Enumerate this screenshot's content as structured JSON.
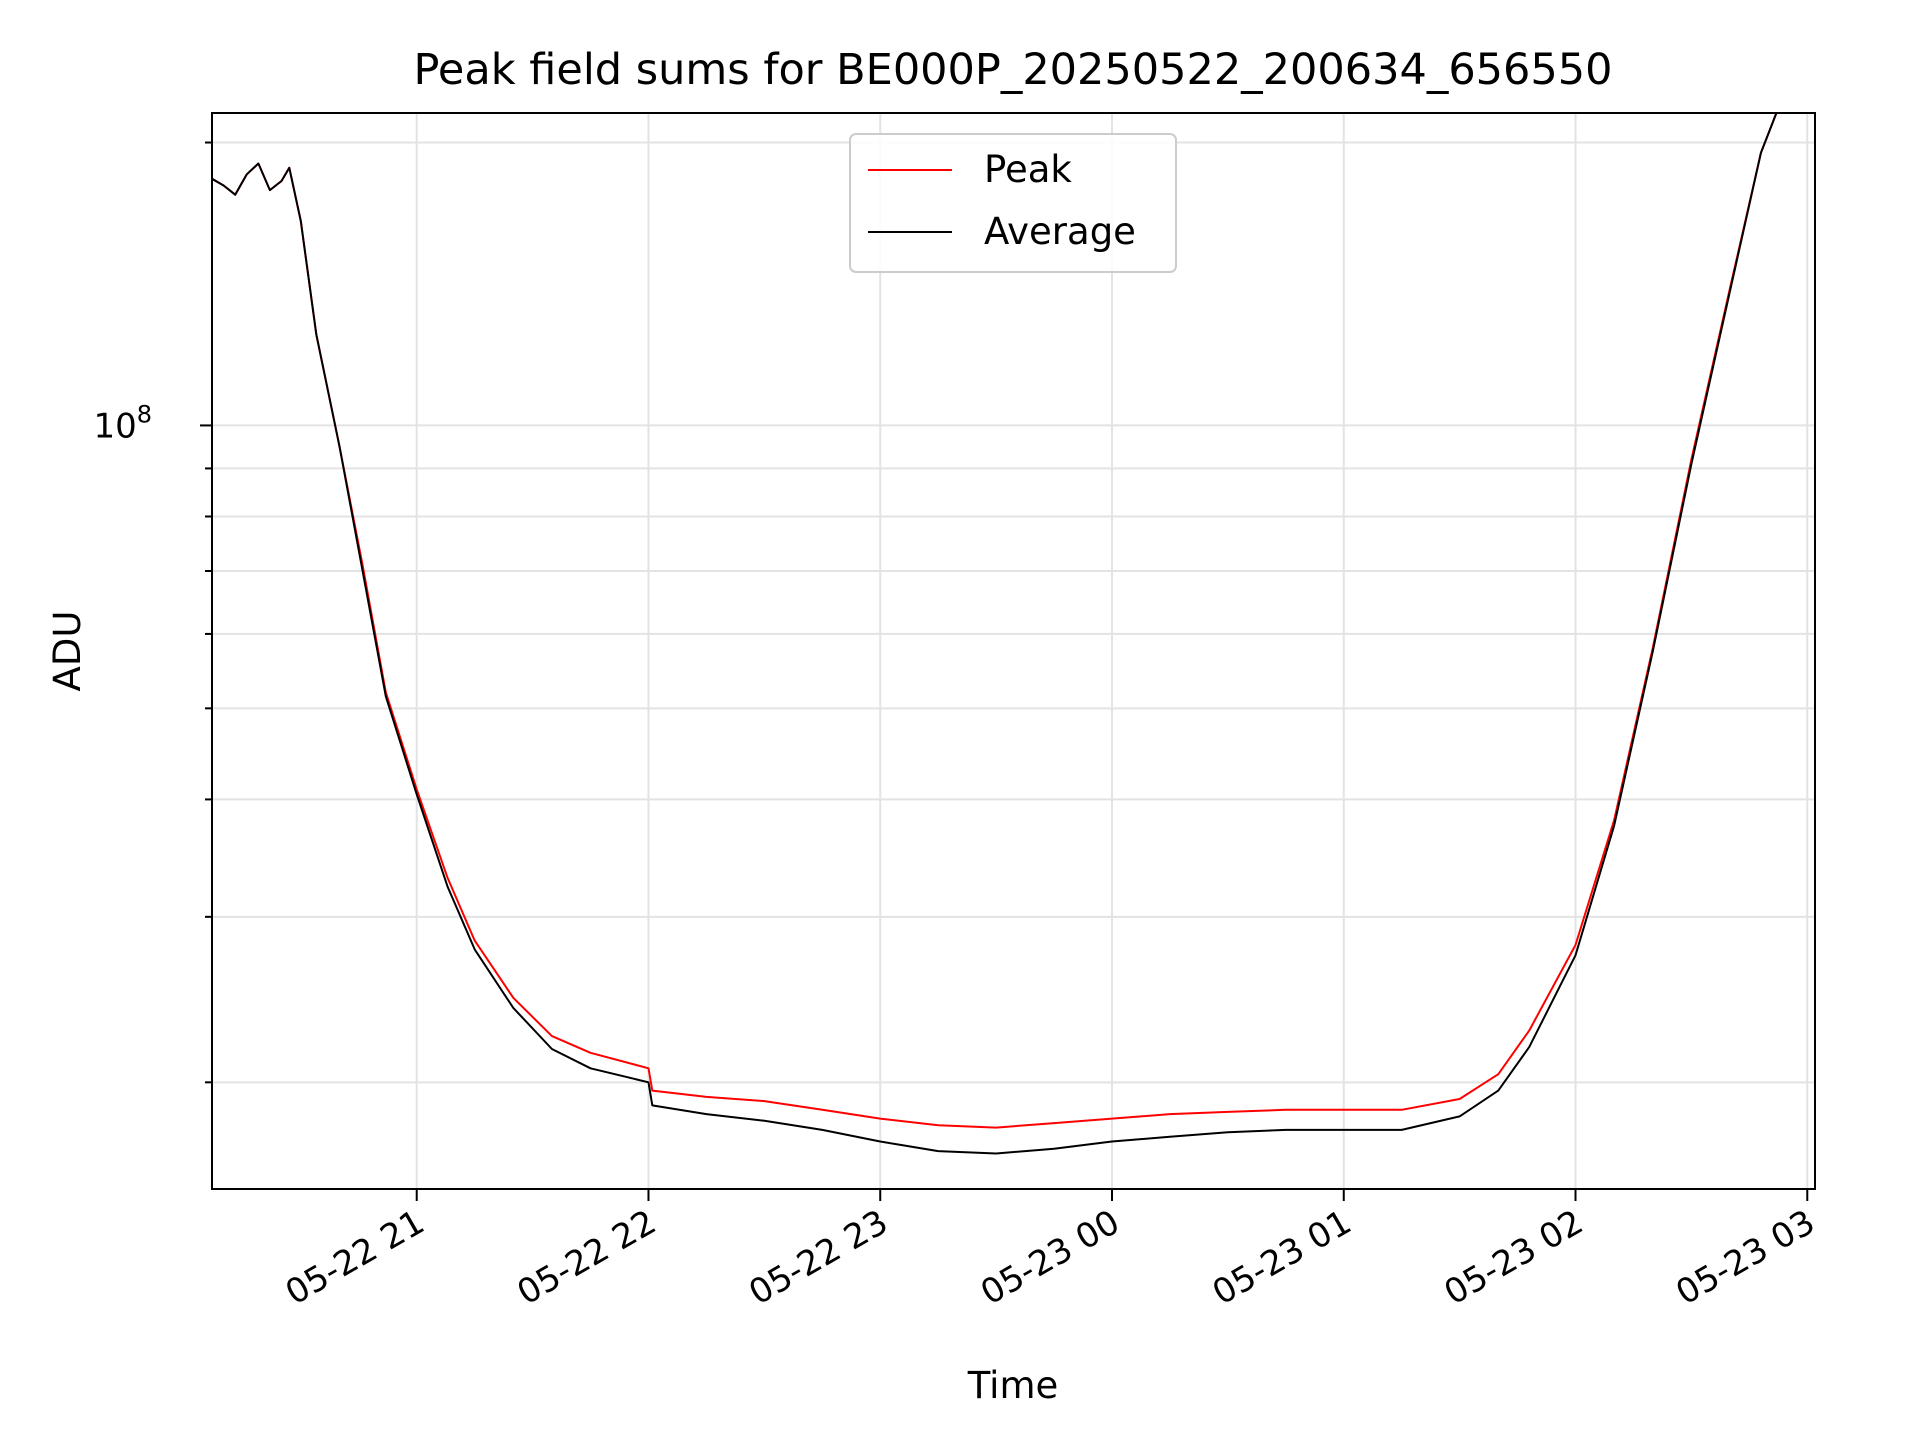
{
  "chart_data": {
    "type": "line",
    "title": "Peak field sums for BE000P_20250522_200634_656550",
    "xlabel": "Time",
    "ylabel": "ADU",
    "y_scale": "log",
    "grid": true,
    "grid_which": "both",
    "legend_position": "top-center",
    "x_range": [
      "2025-05-22 20:07",
      "2025-05-23 03:02"
    ],
    "ylim": [
      15400000,
      215000000
    ],
    "x_ticks": [
      {
        "time": "2025-05-22 21:00",
        "label": "05-22 21"
      },
      {
        "time": "2025-05-22 22:00",
        "label": "05-22 22"
      },
      {
        "time": "2025-05-22 23:00",
        "label": "05-22 23"
      },
      {
        "time": "2025-05-23 00:00",
        "label": "05-23 00"
      },
      {
        "time": "2025-05-23 01:00",
        "label": "05-23 01"
      },
      {
        "time": "2025-05-23 02:00",
        "label": "05-23 02"
      },
      {
        "time": "2025-05-23 03:00",
        "label": "05-23 03"
      }
    ],
    "y_major_ticks": [
      {
        "value": 100000000,
        "base": "10",
        "exponent": "8"
      }
    ],
    "y_minor_gridlines": [
      20000000,
      30000000,
      40000000,
      50000000,
      60000000,
      70000000,
      80000000,
      90000000,
      200000000
    ],
    "series": [
      {
        "name": "Peak",
        "color": "#ff0000",
        "points": [
          [
            "2025-05-22 20:07",
            183000000
          ],
          [
            "2025-05-22 20:10",
            180000000
          ],
          [
            "2025-05-22 20:13",
            176000000
          ],
          [
            "2025-05-22 20:16",
            185000000
          ],
          [
            "2025-05-22 20:19",
            190000000
          ],
          [
            "2025-05-22 20:22",
            178000000
          ],
          [
            "2025-05-22 20:25",
            182000000
          ],
          [
            "2025-05-22 20:27",
            188000000
          ],
          [
            "2025-05-22 20:30",
            165000000
          ],
          [
            "2025-05-22 20:34",
            125000000
          ],
          [
            "2025-05-22 20:40",
            95000000
          ],
          [
            "2025-05-22 20:46",
            71000000
          ],
          [
            "2025-05-22 20:52",
            52000000
          ],
          [
            "2025-05-22 21:00",
            41000000
          ],
          [
            "2025-05-22 21:08",
            33000000
          ],
          [
            "2025-05-22 21:15",
            28300000
          ],
          [
            "2025-05-22 21:25",
            24600000
          ],
          [
            "2025-05-22 21:35",
            22400000
          ],
          [
            "2025-05-22 21:45",
            21500000
          ],
          [
            "2025-05-22 22:00",
            20700000
          ],
          [
            "2025-05-22 22:01",
            19600000
          ],
          [
            "2025-05-22 22:15",
            19300000
          ],
          [
            "2025-05-22 22:30",
            19100000
          ],
          [
            "2025-05-22 22:45",
            18700000
          ],
          [
            "2025-05-22 23:00",
            18300000
          ],
          [
            "2025-05-22 23:15",
            18000000
          ],
          [
            "2025-05-22 23:30",
            17900000
          ],
          [
            "2025-05-22 23:45",
            18100000
          ],
          [
            "2025-05-23 00:00",
            18300000
          ],
          [
            "2025-05-23 00:15",
            18500000
          ],
          [
            "2025-05-23 00:30",
            18600000
          ],
          [
            "2025-05-23 00:45",
            18700000
          ],
          [
            "2025-05-23 01:00",
            18700000
          ],
          [
            "2025-05-23 01:15",
            18700000
          ],
          [
            "2025-05-23 01:30",
            19200000
          ],
          [
            "2025-05-23 01:40",
            20400000
          ],
          [
            "2025-05-23 01:48",
            22700000
          ],
          [
            "2025-05-23 02:00",
            28000000
          ],
          [
            "2025-05-23 02:10",
            38000000
          ],
          [
            "2025-05-23 02:20",
            58000000
          ],
          [
            "2025-05-23 02:30",
            92000000
          ],
          [
            "2025-05-23 02:40",
            140000000
          ],
          [
            "2025-05-23 02:48",
            195000000
          ],
          [
            "2025-05-23 02:52",
            215000000
          ]
        ]
      },
      {
        "name": "Average",
        "color": "#000000",
        "points": [
          [
            "2025-05-22 20:07",
            183000000
          ],
          [
            "2025-05-22 20:10",
            180000000
          ],
          [
            "2025-05-22 20:13",
            176000000
          ],
          [
            "2025-05-22 20:16",
            185000000
          ],
          [
            "2025-05-22 20:19",
            190000000
          ],
          [
            "2025-05-22 20:22",
            178000000
          ],
          [
            "2025-05-22 20:25",
            182000000
          ],
          [
            "2025-05-22 20:27",
            188000000
          ],
          [
            "2025-05-22 20:30",
            165000000
          ],
          [
            "2025-05-22 20:34",
            125000000
          ],
          [
            "2025-05-22 20:40",
            95000000
          ],
          [
            "2025-05-22 20:46",
            70000000
          ],
          [
            "2025-05-22 20:52",
            51500000
          ],
          [
            "2025-05-22 21:00",
            40500000
          ],
          [
            "2025-05-22 21:08",
            32300000
          ],
          [
            "2025-05-22 21:15",
            27700000
          ],
          [
            "2025-05-22 21:25",
            24000000
          ],
          [
            "2025-05-22 21:35",
            21700000
          ],
          [
            "2025-05-22 21:45",
            20700000
          ],
          [
            "2025-05-22 22:00",
            20000000
          ],
          [
            "2025-05-22 22:01",
            18900000
          ],
          [
            "2025-05-22 22:15",
            18500000
          ],
          [
            "2025-05-22 22:30",
            18200000
          ],
          [
            "2025-05-22 22:45",
            17800000
          ],
          [
            "2025-05-22 23:00",
            17300000
          ],
          [
            "2025-05-22 23:15",
            16900000
          ],
          [
            "2025-05-22 23:30",
            16800000
          ],
          [
            "2025-05-22 23:45",
            17000000
          ],
          [
            "2025-05-23 00:00",
            17300000
          ],
          [
            "2025-05-23 00:15",
            17500000
          ],
          [
            "2025-05-23 00:30",
            17700000
          ],
          [
            "2025-05-23 00:45",
            17800000
          ],
          [
            "2025-05-23 01:00",
            17800000
          ],
          [
            "2025-05-23 01:15",
            17800000
          ],
          [
            "2025-05-23 01:30",
            18400000
          ],
          [
            "2025-05-23 01:40",
            19600000
          ],
          [
            "2025-05-23 01:48",
            21800000
          ],
          [
            "2025-05-23 02:00",
            27300000
          ],
          [
            "2025-05-23 02:10",
            37500000
          ],
          [
            "2025-05-23 02:20",
            57500000
          ],
          [
            "2025-05-23 02:30",
            91000000
          ],
          [
            "2025-05-23 02:40",
            139000000
          ],
          [
            "2025-05-23 02:48",
            195000000
          ],
          [
            "2025-05-23 02:52",
            215000000
          ]
        ]
      }
    ]
  }
}
